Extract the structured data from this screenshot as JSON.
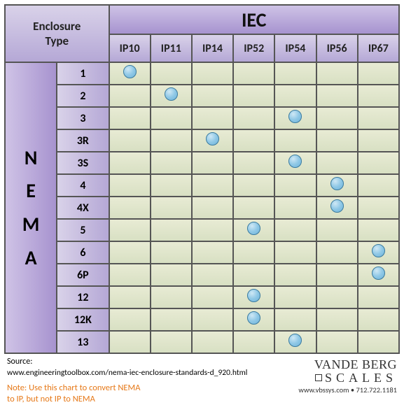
{
  "header": {
    "corner": "Enclosure\nType",
    "iec": "IEC",
    "ip_cols": [
      "IP10",
      "IP11",
      "IP14",
      "IP52",
      "IP54",
      "IP56",
      "IP67"
    ]
  },
  "side": {
    "nema": "NEMA",
    "rows": [
      "1",
      "2",
      "3",
      "3R",
      "3S",
      "4",
      "4X",
      "5",
      "6",
      "6P",
      "12",
      "12K",
      "13"
    ]
  },
  "matrix": [
    [
      1,
      0,
      0,
      0,
      0,
      0,
      0
    ],
    [
      0,
      1,
      0,
      0,
      0,
      0,
      0
    ],
    [
      0,
      0,
      0,
      0,
      1,
      0,
      0
    ],
    [
      0,
      0,
      1,
      0,
      0,
      0,
      0
    ],
    [
      0,
      0,
      0,
      0,
      1,
      0,
      0
    ],
    [
      0,
      0,
      0,
      0,
      0,
      1,
      0
    ],
    [
      0,
      0,
      0,
      0,
      0,
      1,
      0
    ],
    [
      0,
      0,
      0,
      1,
      0,
      0,
      0
    ],
    [
      0,
      0,
      0,
      0,
      0,
      0,
      1
    ],
    [
      0,
      0,
      0,
      0,
      0,
      0,
      1
    ],
    [
      0,
      0,
      0,
      1,
      0,
      0,
      0
    ],
    [
      0,
      0,
      0,
      1,
      0,
      0,
      0
    ],
    [
      0,
      0,
      0,
      0,
      1,
      0,
      0
    ]
  ],
  "footer": {
    "source_label": "Source:",
    "source_url": "www.engineeringtoolbox.com/nema-iec-enclosure-standards-d_920.html",
    "note_line1": "Note: Use this chart to convert NEMA",
    "note_line2": "to IP, but not IP to NEMA",
    "logo_top": "VANDE BERG",
    "logo_mid": "SCALES",
    "logo_bot": "www.vbssys.com • 712.722.1181"
  },
  "style": {
    "dot_color": "#8fc8e6",
    "header_grad_from": "#d9d2e9",
    "header_grad_to": "#b5a8d6",
    "cell_grad_from": "#e8ebd4",
    "cell_grad_to": "#d8e0c3",
    "note_color": "#e67817",
    "border_color": "#555555"
  }
}
